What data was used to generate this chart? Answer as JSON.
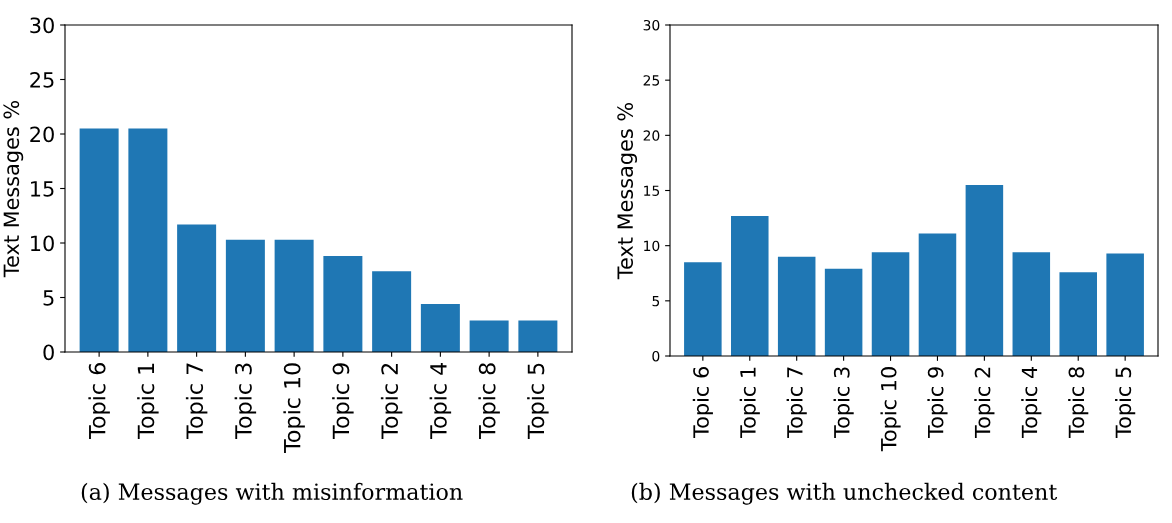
{
  "chart_data": [
    {
      "type": "bar",
      "categories": [
        "Topic 6",
        "Topic 1",
        "Topic 7",
        "Topic 3",
        "Topic 10",
        "Topic 9",
        "Topic 2",
        "Topic 4",
        "Topic 8",
        "Topic 5"
      ],
      "values": [
        20.5,
        20.5,
        11.7,
        10.3,
        10.3,
        8.8,
        7.4,
        4.4,
        2.9,
        2.9
      ],
      "color": "#1f77b4",
      "ylabel": "Text Messages %",
      "ylim": [
        0,
        30
      ],
      "yticks": [
        0,
        5,
        10,
        15,
        20,
        25,
        30
      ],
      "annotations": [
        "(a) Messages with misinformation"
      ]
    },
    {
      "type": "bar",
      "categories": [
        "Topic 6",
        "Topic 1",
        "Topic 7",
        "Topic 3",
        "Topic 10",
        "Topic 9",
        "Topic 2",
        "Topic 4",
        "Topic 8",
        "Topic 5"
      ],
      "values": [
        8.5,
        12.7,
        9.0,
        7.9,
        9.4,
        11.1,
        15.5,
        9.4,
        7.6,
        9.3
      ],
      "color": "#1f77b4",
      "ylabel": "Text Messages %",
      "ylim": [
        0,
        30
      ],
      "yticks": [
        0,
        5,
        10,
        15,
        20,
        25,
        30
      ],
      "annotations": [
        "(b) Messages with unchecked content"
      ]
    }
  ]
}
